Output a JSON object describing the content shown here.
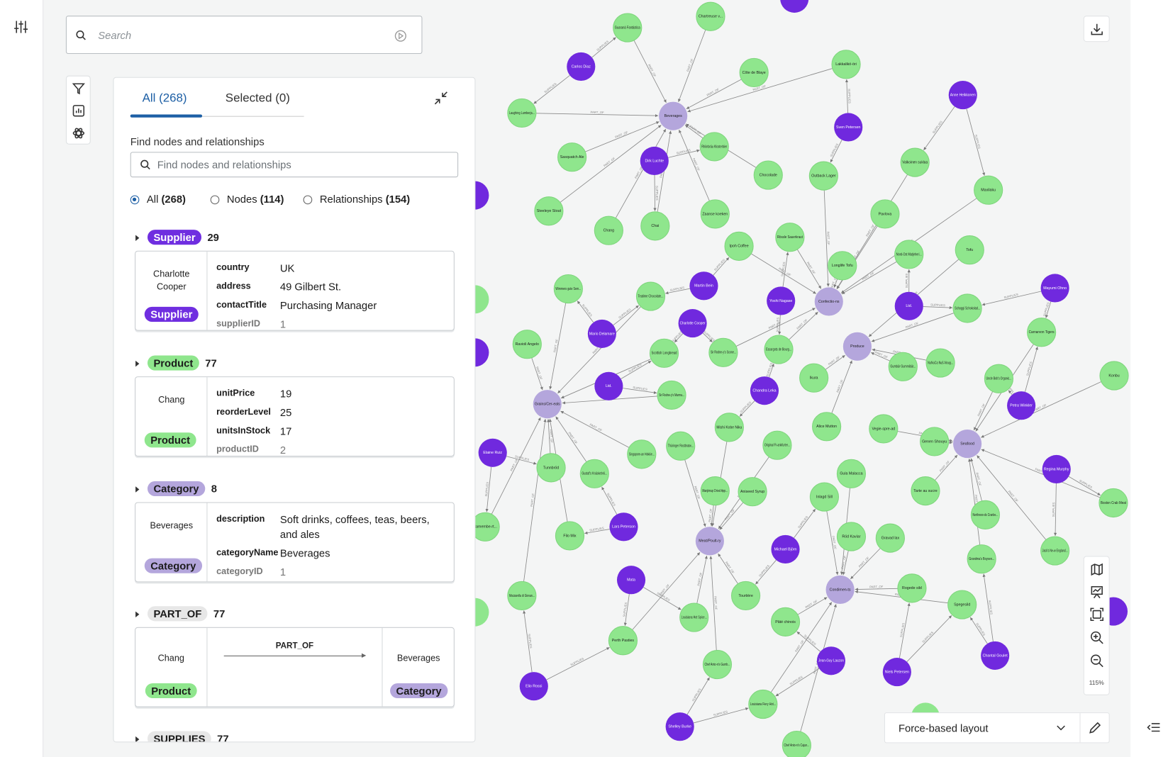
{
  "search": {
    "placeholder": "Search"
  },
  "panel": {
    "tabs": [
      "All (268)",
      "Selected (0)"
    ],
    "find_label": "Find nodes and relationships",
    "find_placeholder": "Find nodes and relationships",
    "radios": [
      {
        "label": "All",
        "count": "(268)"
      },
      {
        "label": "Nodes",
        "count": "(114)"
      },
      {
        "label": "Relationships",
        "count": "(154)"
      }
    ],
    "sections": [
      {
        "name": "Supplier",
        "count": "29",
        "color": "#6f2ee0",
        "text_color": "#ffffff",
        "card": {
          "title": "Charlotte Cooper",
          "props": [
            [
              "country",
              "UK"
            ],
            [
              "address",
              "49 Gilbert St."
            ],
            [
              "contactTitle",
              "Purchasing Manager"
            ],
            [
              "supplierID",
              "1"
            ]
          ]
        }
      },
      {
        "name": "Product",
        "count": "77",
        "color": "#8fe68d",
        "text_color": "#1b1b1b",
        "card": {
          "title": "Chang",
          "props": [
            [
              "unitPrice",
              "19"
            ],
            [
              "reorderLevel",
              "25"
            ],
            [
              "unitsInStock",
              "17"
            ],
            [
              "productID",
              "2"
            ]
          ]
        }
      },
      {
        "name": "Category",
        "count": "8",
        "color": "#b4a6dc",
        "text_color": "#1b1b1b",
        "card": {
          "title": "Beverages",
          "props": [
            [
              "description",
              "Soft drinks, coffees, teas, beers, and ales"
            ],
            [
              "categoryName",
              "Beverages"
            ],
            [
              "categoryID",
              "1"
            ]
          ]
        }
      },
      {
        "name": "PART_OF",
        "count": "77",
        "color": "#e7e7e7",
        "text_color": "#1b1b1b",
        "rel": {
          "from": "Chang",
          "from_type": "Product",
          "type": "PART_OF",
          "to": "Beverages",
          "to_type": "Category"
        }
      },
      {
        "name": "SUPPLIES",
        "count": "77",
        "color": "#e7e7e7",
        "text_color": "#1b1b1b"
      }
    ]
  },
  "graph": {
    "edge_types": [
      "PART_OF",
      "SUPPLIES"
    ],
    "nodes": [
      {
        "label": "Beverages",
        "color": "#b4a6dc"
      },
      {
        "label": "Confectio-ns",
        "color": "#b4a6dc"
      },
      {
        "label": "Produce",
        "color": "#b4a6dc"
      },
      {
        "label": "Grains/Cer-eals",
        "color": "#b4a6dc"
      },
      {
        "label": "Seafood",
        "color": "#b4a6dc"
      },
      {
        "label": "Meat/Poult-ry",
        "color": "#b4a6dc"
      },
      {
        "label": "Condimen-ts",
        "color": "#b4a6dc"
      },
      {
        "label": "Carlos Diaz",
        "color": "#7029de"
      },
      {
        "label": "Dirk Luchte",
        "color": "#7029de"
      },
      {
        "label": "Anne Heikkonen",
        "color": "#7029de"
      },
      {
        "label": "Sven Petersen",
        "color": "#7029de"
      },
      {
        "label": "Martin Bein",
        "color": "#7029de"
      },
      {
        "label": "Yoshi Nagase",
        "color": "#7029de"
      },
      {
        "label": "Ltd.",
        "color": "#7029de"
      },
      {
        "label": "Charlotte Cooper",
        "color": "#7029de"
      },
      {
        "label": "Mario Delamare",
        "color": "#7029de"
      },
      {
        "label": "Ltd.",
        "color": "#7029de"
      },
      {
        "label": "Chandra Leka",
        "color": "#7029de"
      },
      {
        "label": "Elaine Ruiz",
        "color": "#7029de"
      },
      {
        "label": "Lars Peterson",
        "color": "#7029de"
      },
      {
        "label": "Petra Winkler",
        "color": "#7029de"
      },
      {
        "label": "Regina Murphy",
        "color": "#7029de"
      },
      {
        "label": "Michael Björn",
        "color": "#7029de"
      },
      {
        "label": "Mata",
        "color": "#7029de"
      },
      {
        "label": "Jean-Guy Lauzon",
        "color": "#7029de"
      },
      {
        "label": "Niels Petersen",
        "color": "#7029de"
      },
      {
        "label": "Chantal Goulet",
        "color": "#7029de"
      },
      {
        "label": "Shelley Burke",
        "color": "#7029de"
      },
      {
        "label": "Elio Rossi",
        "color": "#7029de"
      },
      {
        "label": "Mayumi Ohno",
        "color": "#7029de"
      },
      {
        "label": "Guaraná Fantástica",
        "color": "#8fe68d"
      },
      {
        "label": "Chartreuse v...",
        "color": "#8fe68d"
      },
      {
        "label": "Côte de Blaye",
        "color": "#8fe68d"
      },
      {
        "label": "Lakkalikö-öri",
        "color": "#8fe68d"
      },
      {
        "label": "Laughing Lumberja...",
        "color": "#8fe68d"
      },
      {
        "label": "Sasquatch Ale",
        "color": "#8fe68d"
      },
      {
        "label": "Rhönbräu Klosterbier",
        "color": "#8fe68d"
      },
      {
        "label": "Chocolade",
        "color": "#8fe68d"
      },
      {
        "label": "Outback Lager",
        "color": "#8fe68d"
      },
      {
        "label": "Valkoinen suklaa",
        "color": "#8fe68d"
      },
      {
        "label": "Maxilaku",
        "color": "#8fe68d"
      },
      {
        "label": "Steeleye Stout",
        "color": "#8fe68d"
      },
      {
        "label": "Chang",
        "color": "#8fe68d"
      },
      {
        "label": "Chai",
        "color": "#8fe68d"
      },
      {
        "label": "Zaanse koeken",
        "color": "#8fe68d"
      },
      {
        "label": "Pavlova",
        "color": "#8fe68d"
      },
      {
        "label": "Ipoh Coffee",
        "color": "#8fe68d"
      },
      {
        "label": "Rössle Sauerkraut",
        "color": "#8fe68d"
      },
      {
        "label": "Longlife Tofu",
        "color": "#8fe68d"
      },
      {
        "label": "Nord-Ost Matjeheri...",
        "color": "#8fe68d"
      },
      {
        "label": "Tofu",
        "color": "#8fe68d"
      },
      {
        "label": "Wimmers gute Sem...",
        "color": "#8fe68d"
      },
      {
        "label": "Teatime Chocolate...",
        "color": "#8fe68d"
      },
      {
        "label": "Schoggi Schokolad...",
        "color": "#8fe68d"
      },
      {
        "label": "Carnarvon Tigers",
        "color": "#8fe68d"
      },
      {
        "label": "Konbu",
        "color": "#8fe68d"
      },
      {
        "label": "Ravioli Angelo",
        "color": "#8fe68d"
      },
      {
        "label": "Scottish Longbread",
        "color": "#8fe68d"
      },
      {
        "label": "Sir Rodne-y's Scone...",
        "color": "#8fe68d"
      },
      {
        "label": "Escargots de Bourg...",
        "color": "#8fe68d"
      },
      {
        "label": "Ikura",
        "color": "#8fe68d"
      },
      {
        "label": "Gumbär Gummibär...",
        "color": "#8fe68d"
      },
      {
        "label": "NuNuCa Nuß-Noug...",
        "color": "#8fe68d"
      },
      {
        "label": "Uncle Bob's Organic...",
        "color": "#8fe68d"
      },
      {
        "label": "Sir Rodne-y's Marma...",
        "color": "#8fe68d"
      },
      {
        "label": "Mishi Kobe Niku",
        "color": "#8fe68d"
      },
      {
        "label": "Alice Mutton",
        "color": "#8fe68d"
      },
      {
        "label": "Vegie-spre-ad",
        "color": "#8fe68d"
      },
      {
        "label": "Genen Shouyu",
        "color": "#8fe68d"
      },
      {
        "label": "Tunnbröd",
        "color": "#8fe68d"
      },
      {
        "label": "Gustaf's Knäckebrö...",
        "color": "#8fe68d"
      },
      {
        "label": "Singapore-an Hokkie...",
        "color": "#8fe68d"
      },
      {
        "label": "Thüringer Rostbratw...",
        "color": "#8fe68d"
      },
      {
        "label": "Original Fr-ankfurter...",
        "color": "#8fe68d"
      },
      {
        "label": "Manjimup Dried App...",
        "color": "#8fe68d"
      },
      {
        "label": "Gula Malacca",
        "color": "#8fe68d"
      },
      {
        "label": "Aniseed Syrup",
        "color": "#8fe68d"
      },
      {
        "label": "Inlagd Sill",
        "color": "#8fe68d"
      },
      {
        "label": "Tarte au sucre",
        "color": "#8fe68d"
      },
      {
        "label": "Camembe-rt...",
        "color": "#8fe68d"
      },
      {
        "label": "Filo Mix",
        "color": "#8fe68d"
      },
      {
        "label": "Röd Kaviar",
        "color": "#8fe68d"
      },
      {
        "label": "Gravad lax",
        "color": "#8fe68d"
      },
      {
        "label": "Northwoo-ds Cranbe...",
        "color": "#8fe68d"
      },
      {
        "label": "Grandma's Boysen...",
        "color": "#8fe68d"
      },
      {
        "label": "Jack's Ne-w England...",
        "color": "#8fe68d"
      },
      {
        "label": "Boston Crab Meat",
        "color": "#8fe68d"
      },
      {
        "label": "Tourtière",
        "color": "#8fe68d"
      },
      {
        "label": "Louisiana Hot Spice...",
        "color": "#8fe68d"
      },
      {
        "label": "Pâté chinois",
        "color": "#8fe68d"
      },
      {
        "label": "Mozzarella di Giovan...",
        "color": "#8fe68d"
      },
      {
        "label": "Perth Pasties",
        "color": "#8fe68d"
      },
      {
        "label": "Rogede sild",
        "color": "#8fe68d"
      },
      {
        "label": "Spegesild",
        "color": "#8fe68d"
      },
      {
        "label": "Chef Anto-n's Gumb...",
        "color": "#8fe68d"
      },
      {
        "label": "Louisiana Fiery Hot...",
        "color": "#8fe68d"
      },
      {
        "label": "Chef Anto-n's Cajun...",
        "color": "#8fe68d"
      }
    ]
  },
  "zoom": "115%",
  "layout": "Force-based layout"
}
